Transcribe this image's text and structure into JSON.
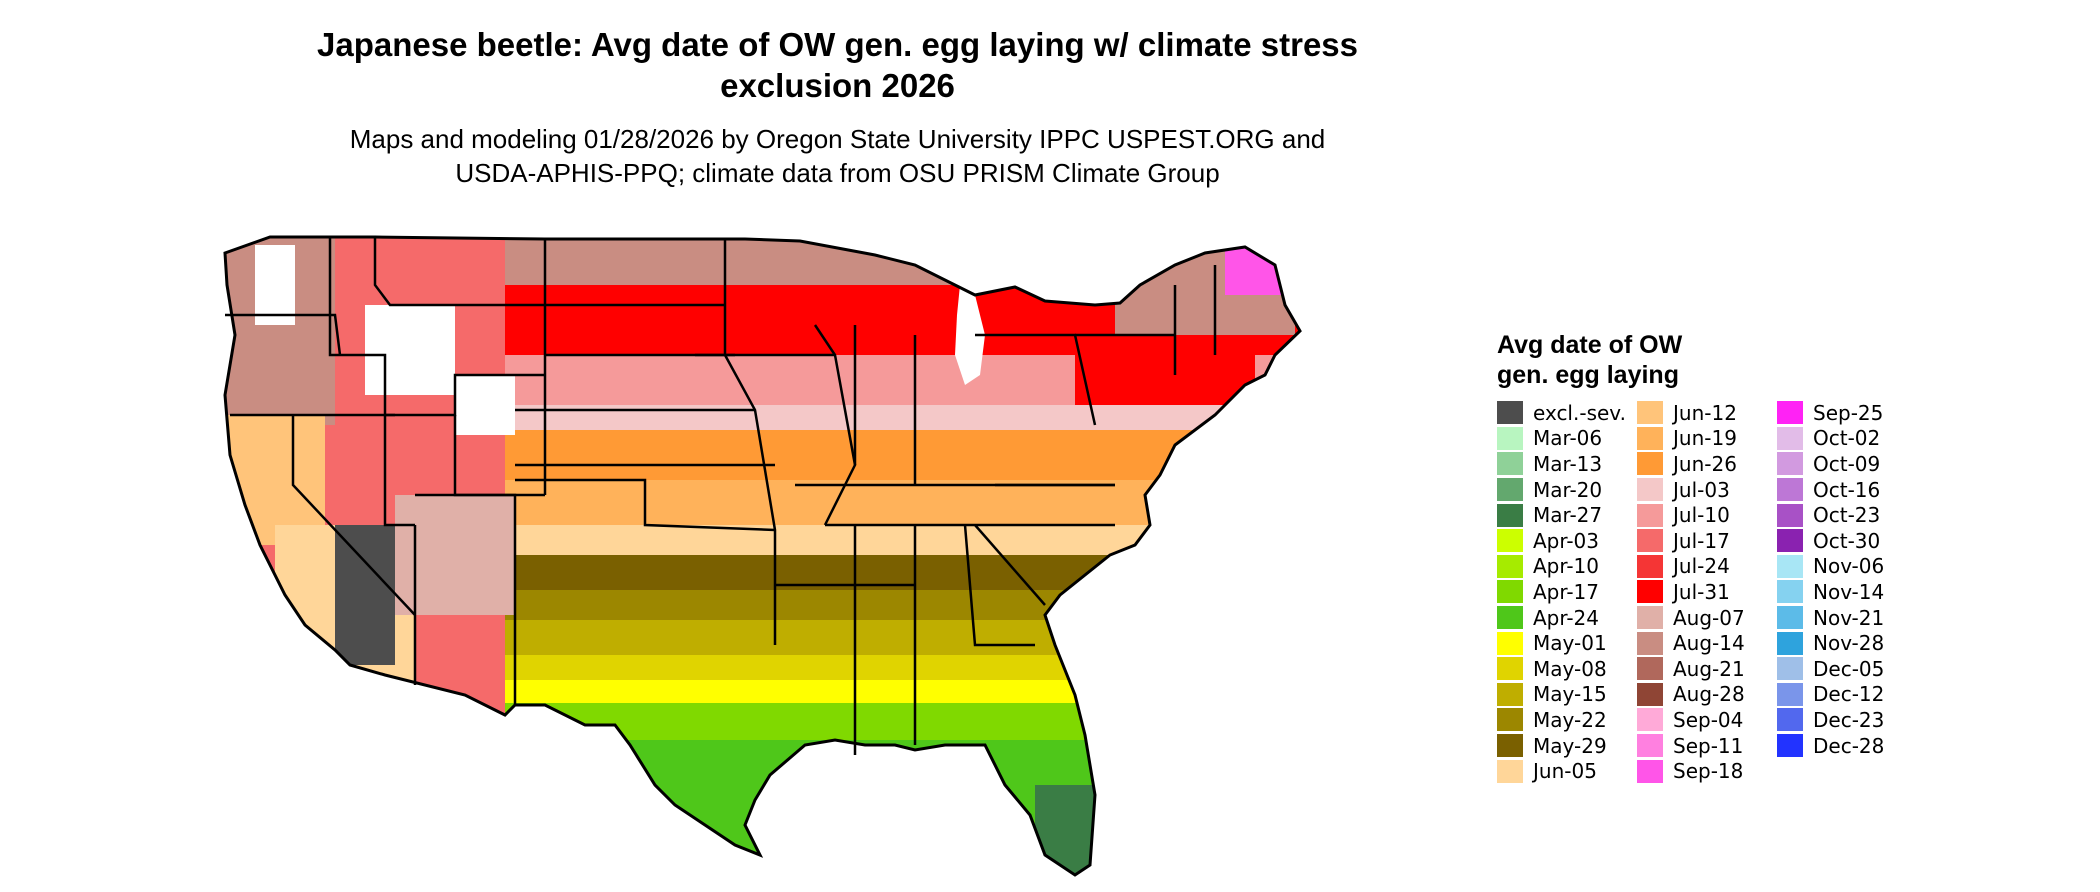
{
  "title_line1": "Japanese beetle: Avg date of OW gen. egg laying w/ climate stress",
  "title_line2": "exclusion 2026",
  "subtitle_line1": "Maps and modeling 01/28/2026 by Oregon State University IPPC USPEST.ORG and",
  "subtitle_line2": "USDA-APHIS-PPQ; climate data from OSU PRISM Climate Group",
  "legend": {
    "title_line1": "Avg date of OW",
    "title_line2": "gen. egg laying",
    "items": [
      {
        "label": "excl.-sev.",
        "color": "#4d4d4d"
      },
      {
        "label": "Mar-06",
        "color": "#b8f5c0"
      },
      {
        "label": "Mar-13",
        "color": "#8fd198"
      },
      {
        "label": "Mar-20",
        "color": "#63a86e"
      },
      {
        "label": "Mar-27",
        "color": "#3a7d45"
      },
      {
        "label": "Apr-03",
        "color": "#ccff00"
      },
      {
        "label": "Apr-10",
        "color": "#a6eb00"
      },
      {
        "label": "Apr-17",
        "color": "#80d900"
      },
      {
        "label": "Apr-24",
        "color": "#4fc71a"
      },
      {
        "label": "May-01",
        "color": "#ffff00"
      },
      {
        "label": "May-08",
        "color": "#e0d400"
      },
      {
        "label": "May-15",
        "color": "#bfae00"
      },
      {
        "label": "May-22",
        "color": "#9c8700"
      },
      {
        "label": "May-29",
        "color": "#7a6000"
      },
      {
        "label": "Jun-05",
        "color": "#ffd699"
      },
      {
        "label": "Jun-12",
        "color": "#ffc47a"
      },
      {
        "label": "Jun-19",
        "color": "#ffb25a"
      },
      {
        "label": "Jun-26",
        "color": "#ff9a35"
      },
      {
        "label": "Jul-03",
        "color": "#f4c8c8"
      },
      {
        "label": "Jul-10",
        "color": "#f59a9a"
      },
      {
        "label": "Jul-17",
        "color": "#f56a6a"
      },
      {
        "label": "Jul-24",
        "color": "#f53535"
      },
      {
        "label": "Jul-31",
        "color": "#ff0000"
      },
      {
        "label": "Aug-07",
        "color": "#e0b0a8"
      },
      {
        "label": "Aug-14",
        "color": "#c98d82"
      },
      {
        "label": "Aug-21",
        "color": "#b0685c"
      },
      {
        "label": "Aug-28",
        "color": "#8f4535"
      },
      {
        "label": "Sep-04",
        "color": "#ffaad8"
      },
      {
        "label": "Sep-11",
        "color": "#ff80e0"
      },
      {
        "label": "Sep-18",
        "color": "#ff55e8"
      },
      {
        "label": "Sep-25",
        "color": "#ff22f5"
      },
      {
        "label": "Oct-02",
        "color": "#e2bce8"
      },
      {
        "label": "Oct-09",
        "color": "#d29ae0"
      },
      {
        "label": "Oct-16",
        "color": "#bd77d6"
      },
      {
        "label": "Oct-23",
        "color": "#a851c6"
      },
      {
        "label": "Oct-30",
        "color": "#8a22b0"
      },
      {
        "label": "Nov-06",
        "color": "#a8e6f5"
      },
      {
        "label": "Nov-14",
        "color": "#85d2f0"
      },
      {
        "label": "Nov-21",
        "color": "#5cbbe8"
      },
      {
        "label": "Nov-28",
        "color": "#2ea3dd"
      },
      {
        "label": "Dec-05",
        "color": "#9fbfe8"
      },
      {
        "label": "Dec-12",
        "color": "#7a95ea"
      },
      {
        "label": "Dec-23",
        "color": "#5268ee"
      },
      {
        "label": "Dec-28",
        "color": "#2233ff"
      }
    ]
  },
  "colors": {
    "state_border": "#000000",
    "no_data": "#ffffff"
  }
}
